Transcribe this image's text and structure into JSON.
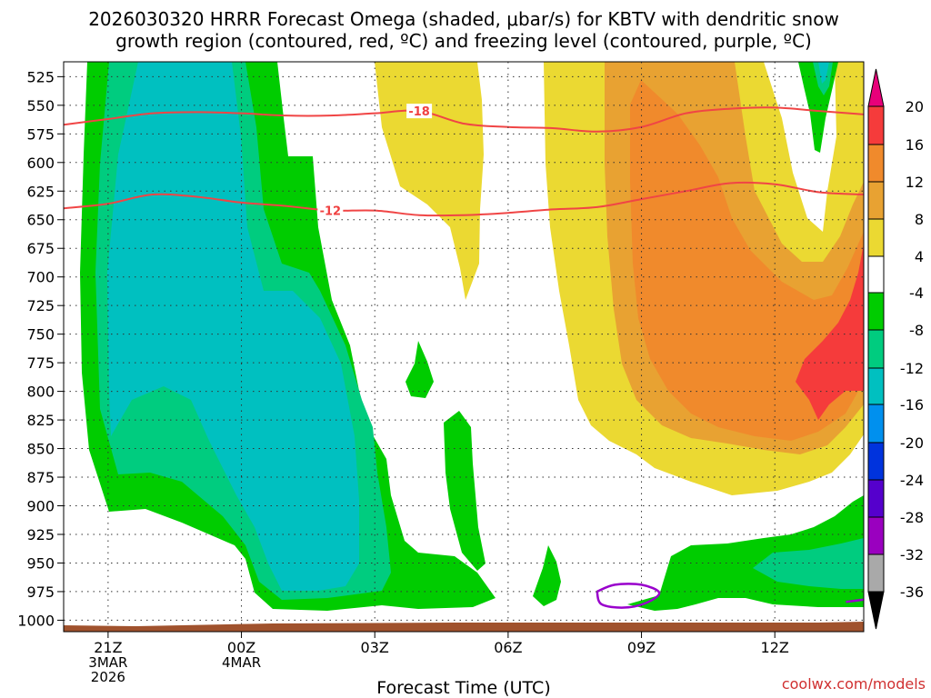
{
  "chart_data": {
    "type": "heatmap",
    "title_line1": "2026030320 HRRR Forecast Omega (shaded, μbar/s) for KBTV with dendritic snow",
    "title_line2": "growth region (contoured, red, ºC) and freezing level (contoured, purple, ºC)",
    "xlabel": "Forecast Time (UTC)",
    "x_range_hours": [
      0,
      18
    ],
    "x_ticks": [
      {
        "hour": 1,
        "labels": [
          "21Z",
          "3MAR",
          "2026"
        ]
      },
      {
        "hour": 4,
        "labels": [
          "00Z",
          "4MAR"
        ]
      },
      {
        "hour": 7,
        "labels": [
          "03Z"
        ]
      },
      {
        "hour": 10,
        "labels": [
          "06Z"
        ]
      },
      {
        "hour": 13,
        "labels": [
          "09Z"
        ]
      },
      {
        "hour": 16,
        "labels": [
          "12Z"
        ]
      }
    ],
    "y_range_hpa": [
      512,
      1010
    ],
    "y_ticks": [
      "525",
      "550",
      "575",
      "600",
      "625",
      "650",
      "675",
      "700",
      "725",
      "750",
      "775",
      "800",
      "825",
      "850",
      "875",
      "900",
      "925",
      "950",
      "975",
      "1000"
    ],
    "colorbar": {
      "tick_labels": [
        "20",
        "16",
        "12",
        "8",
        "4",
        "-4",
        "-8",
        "-12",
        "-16",
        "-20",
        "-24",
        "-28",
        "-32",
        "-36"
      ],
      "colors": {
        "p20_plus": "#e8007a",
        "p16_20": "#f53b3b",
        "p12_16": "#f08a2c",
        "p8_12": "#e8a232",
        "p4_8": "#ebd932",
        "n4_p4": "#ffffff",
        "n8_n4": "#00cc00",
        "n12_n8": "#00cc7f",
        "n16_n12": "#00c0c0",
        "n20_n16": "#0090ee",
        "n24_n20": "#0033dd",
        "n28_n24": "#5500cc",
        "n32_n28": "#9a00bf",
        "n36_n32": "#a9a9a9",
        "below_n36": "#000000"
      }
    },
    "dgz_contours": [
      {
        "label": "-18",
        "points": [
          [
            0,
            567
          ],
          [
            1,
            562
          ],
          [
            2,
            557
          ],
          [
            3,
            556
          ],
          [
            4,
            557
          ],
          [
            5,
            559
          ],
          [
            6,
            559
          ],
          [
            7,
            557
          ],
          [
            8,
            555
          ],
          [
            9,
            566
          ],
          [
            10,
            569
          ],
          [
            11,
            570
          ],
          [
            12,
            573
          ],
          [
            13,
            569
          ],
          [
            14,
            557
          ],
          [
            15,
            553
          ],
          [
            16,
            552
          ],
          [
            17,
            555
          ],
          [
            18,
            558
          ]
        ]
      },
      {
        "label": "-12",
        "points": [
          [
            0,
            640
          ],
          [
            1,
            636
          ],
          [
            2,
            628
          ],
          [
            3,
            630
          ],
          [
            4,
            635
          ],
          [
            5,
            638
          ],
          [
            6,
            642
          ],
          [
            7,
            642
          ],
          [
            8,
            646
          ],
          [
            9,
            646
          ],
          [
            10,
            644
          ],
          [
            11,
            641
          ],
          [
            12,
            639
          ],
          [
            13,
            632
          ],
          [
            14,
            625
          ],
          [
            15,
            618
          ],
          [
            16,
            619
          ],
          [
            17,
            626
          ],
          [
            18,
            628
          ]
        ]
      }
    ],
    "freezing_level_contours": [
      {
        "points": [
          [
            0,
            1006
          ],
          [
            0.7,
            1009
          ],
          [
            1.4,
            1011
          ]
        ]
      },
      {
        "points": [
          [
            12.0,
            975
          ],
          [
            12.4,
            969
          ],
          [
            13.0,
            969
          ],
          [
            13.4,
            976
          ],
          [
            13.1,
            985
          ],
          [
            12.6,
            989
          ],
          [
            12.1,
            986
          ],
          [
            12.0,
            975
          ]
        ]
      },
      {
        "points": [
          [
            17.6,
            984
          ],
          [
            18,
            982
          ]
        ]
      }
    ],
    "terrain_color": "#a0522d",
    "credit": "coolwx.com/models"
  }
}
